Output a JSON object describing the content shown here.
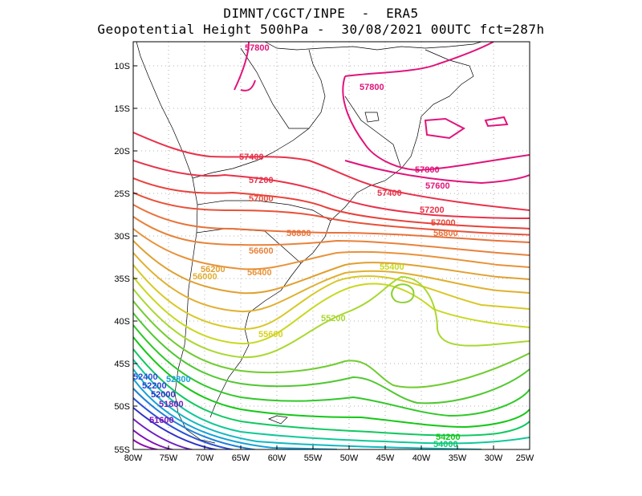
{
  "title_line1": "DIMNT/CGCT/INPE  -  ERA5",
  "title_line2": "Geopotential Height 500hPa -  30/08/2021 00UTC fct=287h",
  "lat_ticks": [
    "10S",
    "15S",
    "20S",
    "25S",
    "30S",
    "35S",
    "40S",
    "45S",
    "50S",
    "55S"
  ],
  "lon_ticks": [
    "80W",
    "75W",
    "70W",
    "65W",
    "60W",
    "55W",
    "50W",
    "45W",
    "40W",
    "35W",
    "30W",
    "25W"
  ],
  "contour_labels": [
    {
      "text": "57800",
      "color": "#e0147a"
    },
    {
      "text": "57800",
      "color": "#e0147a"
    },
    {
      "text": "57800",
      "color": "#e0147a"
    },
    {
      "text": "57600",
      "color": "#e0147a"
    },
    {
      "text": "57400",
      "color": "#e8324a"
    },
    {
      "text": "57400",
      "color": "#e8324a"
    },
    {
      "text": "57200",
      "color": "#e8324a"
    },
    {
      "text": "57200",
      "color": "#e8324a"
    },
    {
      "text": "57000",
      "color": "#e84a3a"
    },
    {
      "text": "57000",
      "color": "#e84a3a"
    },
    {
      "text": "56800",
      "color": "#e8723a"
    },
    {
      "text": "56800",
      "color": "#e8723a"
    },
    {
      "text": "56600",
      "color": "#e8823a"
    },
    {
      "text": "56400",
      "color": "#e8923a"
    },
    {
      "text": "56200",
      "color": "#e0a030"
    },
    {
      "text": "56000",
      "color": "#e0b030"
    },
    {
      "text": "55600",
      "color": "#d8d020"
    },
    {
      "text": "55400",
      "color": "#c8d820"
    },
    {
      "text": "55200",
      "color": "#a8d830"
    },
    {
      "text": "54200",
      "color": "#14c814"
    },
    {
      "text": "54000",
      "color": "#10c870"
    },
    {
      "text": "52800",
      "color": "#14a0d8"
    },
    {
      "text": "52400",
      "color": "#2850d8"
    },
    {
      "text": "52200",
      "color": "#2840d8"
    },
    {
      "text": "52000",
      "color": "#3030c8"
    },
    {
      "text": "51800",
      "color": "#7020c0"
    },
    {
      "text": "51600",
      "color": "#8010b8"
    }
  ]
}
